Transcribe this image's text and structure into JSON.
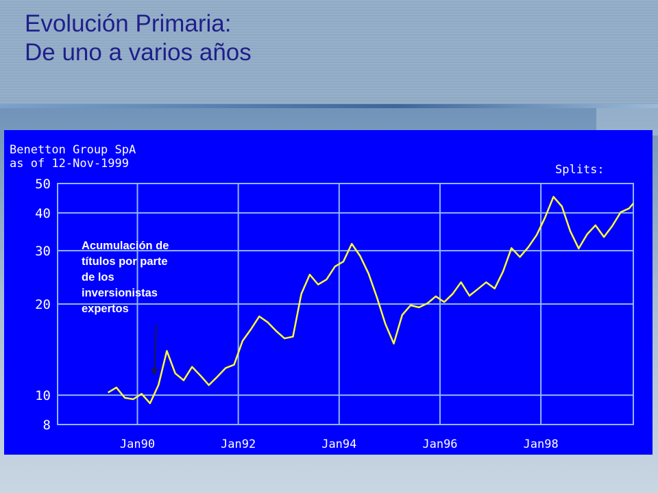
{
  "slide": {
    "title_line1": "Evolución Primaria:",
    "title_line2": "De uno a varios años"
  },
  "colors": {
    "title": "#1f1f8a",
    "chart_background": "#0000ff",
    "series_line": "#ffff33",
    "grid": "#8fb8ff",
    "label_text": "#ffffff",
    "annotation_text": "#ffffff",
    "arrow": "#1a1a40"
  },
  "chart_data": {
    "type": "line",
    "title": "Benetton Group SpA",
    "subtitle": "as of 12-Nov-1999",
    "corner_label": "Splits:",
    "y_scale": "log",
    "ylim": [
      8,
      50
    ],
    "y_ticks": [
      50,
      40,
      30,
      20,
      10,
      8
    ],
    "y_tick_labels": [
      "50",
      "40",
      "30",
      "20",
      "10",
      "8"
    ],
    "xlim": [
      "1988-06",
      "1999-11"
    ],
    "x_ticks": [
      "1990-01",
      "1992-01",
      "1994-01",
      "1996-01",
      "1998-01"
    ],
    "x_tick_labels": [
      "Jan90",
      "Jan92",
      "Jan94",
      "Jan96",
      "Jan98"
    ],
    "grid": true,
    "series": [
      {
        "x": [
          "1989-06",
          "1989-08",
          "1989-10",
          "1989-12",
          "1990-02",
          "1990-04",
          "1990-06",
          "1990-08",
          "1990-10",
          "1990-12",
          "1991-02",
          "1991-04",
          "1991-06",
          "1991-08",
          "1991-10",
          "1991-12",
          "1992-02",
          "1992-04",
          "1992-06",
          "1992-08",
          "1992-10",
          "1992-12",
          "1993-02",
          "1993-04",
          "1993-06",
          "1993-08",
          "1993-10",
          "1993-12",
          "1994-02",
          "1994-04",
          "1994-06",
          "1994-08",
          "1994-10",
          "1994-12",
          "1995-02",
          "1995-04",
          "1995-06",
          "1995-08",
          "1995-10",
          "1995-12",
          "1996-02",
          "1996-04",
          "1996-06",
          "1996-08",
          "1996-10",
          "1996-12",
          "1997-02",
          "1997-04",
          "1997-06",
          "1997-08",
          "1997-10",
          "1997-12",
          "1998-02",
          "1998-04",
          "1998-06",
          "1998-08",
          "1998-10",
          "1998-12",
          "1999-02",
          "1999-04",
          "1999-06",
          "1999-08",
          "1999-10",
          "1999-11"
        ],
        "values": [
          10.2,
          10.6,
          9.8,
          9.7,
          10.1,
          9.4,
          10.8,
          14.0,
          11.8,
          11.2,
          12.4,
          11.6,
          10.8,
          11.5,
          12.3,
          12.6,
          15.1,
          16.5,
          18.2,
          17.4,
          16.3,
          15.4,
          15.6,
          21.6,
          25.0,
          23.2,
          24.1,
          26.6,
          27.6,
          31.6,
          28.8,
          25.2,
          21.0,
          17.2,
          14.8,
          18.4,
          19.8,
          19.5,
          20.1,
          21.2,
          20.3,
          21.6,
          23.6,
          21.3,
          22.4,
          23.6,
          22.5,
          25.6,
          30.6,
          28.6,
          30.8,
          33.8,
          38.6,
          45.2,
          42.0,
          34.8,
          30.5,
          34.0,
          36.4,
          33.3,
          36.2,
          40.2,
          41.4,
          43.0
        ]
      }
    ],
    "annotations": [
      {
        "text_lines": [
          "Acumulación de",
          "títulos por parte",
          "de los",
          "inversionistas",
          "expertos"
        ],
        "arrow_to_x": "1990-05",
        "arrow_to_y": 11.6
      }
    ]
  }
}
